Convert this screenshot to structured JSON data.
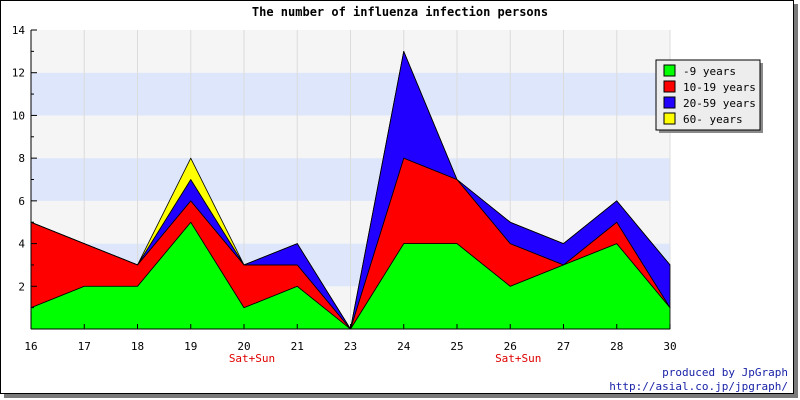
{
  "chart_data": {
    "type": "area",
    "stacked": true,
    "title": "The number of influenza infection persons",
    "categories": [
      "16",
      "17",
      "18",
      "19",
      "20",
      "21",
      "23",
      "24",
      "25",
      "26",
      "27",
      "28",
      "30"
    ],
    "sublabels": [
      "",
      "",
      "",
      "",
      "Sat+Sun",
      "",
      "",
      "",
      "",
      "Sat+Sun",
      "",
      "",
      ""
    ],
    "ylim": [
      0,
      14
    ],
    "yticks": [
      2,
      4,
      6,
      8,
      10,
      12,
      14
    ],
    "grid": true,
    "legend_position": "top-right",
    "series": [
      {
        "name": "-9 years",
        "color": "#00ff00",
        "values": [
          1,
          2,
          2,
          5,
          1,
          2,
          0,
          4,
          4,
          2,
          3,
          4,
          1
        ]
      },
      {
        "name": "10-19 years",
        "color": "#ff0000",
        "values": [
          4,
          2,
          1,
          1,
          2,
          1,
          0,
          4,
          3,
          2,
          0,
          1,
          0
        ]
      },
      {
        "name": "20-59 years",
        "color": "#2200ff",
        "values": [
          0,
          0,
          0,
          1,
          0,
          1,
          0,
          5,
          0,
          1,
          1,
          1,
          2
        ]
      },
      {
        "name": "60- years",
        "color": "#ffff00",
        "values": [
          0,
          0,
          0,
          1,
          0,
          0,
          0,
          0,
          0,
          0,
          0,
          0,
          0
        ]
      }
    ]
  },
  "credits": {
    "line1": "produced by JpGraph",
    "line2": "http://asial.co.jp/jpgraph/"
  }
}
